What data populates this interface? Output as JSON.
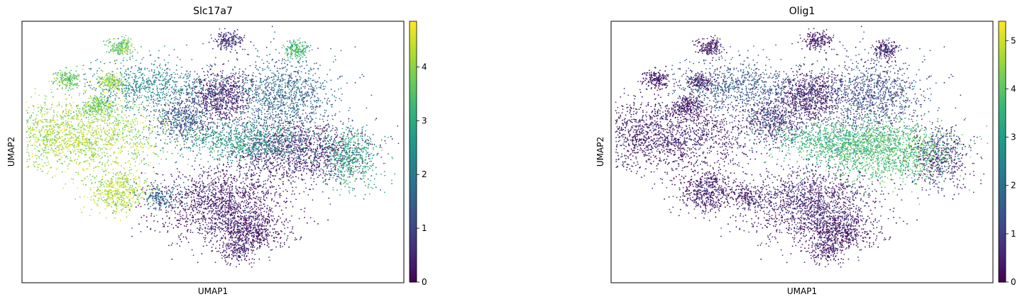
{
  "chart_data": [
    {
      "type": "scatter",
      "title": "Slc17a7",
      "xlabel": "UMAP1",
      "ylabel": "UMAP2",
      "colormap": "viridis",
      "colorbar": {
        "min": 0,
        "max": 4.85,
        "ticks": [
          0,
          1,
          2,
          3,
          4
        ]
      },
      "grid": false,
      "clusters": [
        {
          "x": -9.0,
          "y": 2.0,
          "spread": [
            3.0,
            1.2
          ],
          "value": 4.1,
          "weight": 10
        },
        {
          "x": -6.2,
          "y": -1.6,
          "spread": [
            0.9,
            0.7
          ],
          "value": 4.2,
          "weight": 3
        },
        {
          "x": -7.5,
          "y": 3.8,
          "spread": [
            0.5,
            0.3
          ],
          "value": 3.5,
          "weight": 1
        },
        {
          "x": -6.0,
          "y": 7.5,
          "spread": [
            0.4,
            0.3
          ],
          "value": 3.6,
          "weight": 1
        },
        {
          "x": -9.5,
          "y": 5.5,
          "spread": [
            0.4,
            0.3
          ],
          "value": 3.6,
          "weight": 1
        },
        {
          "x": -6.7,
          "y": 5.3,
          "spread": [
            0.5,
            0.3
          ],
          "value": 4.0,
          "weight": 1
        },
        {
          "x": -4.0,
          "y": 5.0,
          "spread": [
            2.0,
            0.8
          ],
          "value": 2.2,
          "weight": 4
        },
        {
          "x": -2.0,
          "y": 3.0,
          "spread": [
            1.0,
            0.8
          ],
          "value": 1.2,
          "weight": 3
        },
        {
          "x": 0.5,
          "y": 4.4,
          "spread": [
            1.0,
            0.8
          ],
          "value": 0.4,
          "weight": 4
        },
        {
          "x": 4.5,
          "y": 4.5,
          "spread": [
            1.8,
            1.2
          ],
          "value": 1.6,
          "weight": 6
        },
        {
          "x": 5.5,
          "y": 1.0,
          "spread": [
            2.2,
            1.0
          ],
          "value": 0.5,
          "weight": 8
        },
        {
          "x": 2.0,
          "y": 1.5,
          "spread": [
            2.0,
            0.6
          ],
          "value": 2.6,
          "weight": 4
        },
        {
          "x": 0.5,
          "y": -2.5,
          "spread": [
            2.2,
            1.1
          ],
          "value": 0.3,
          "weight": 8
        },
        {
          "x": 2.5,
          "y": -4.3,
          "spread": [
            1.2,
            0.6
          ],
          "value": 0.3,
          "weight": 3
        },
        {
          "x": 1.5,
          "y": -5.5,
          "spread": [
            0.6,
            0.4
          ],
          "value": 0.3,
          "weight": 1
        },
        {
          "x": 9.0,
          "y": 0.5,
          "spread": [
            1.0,
            1.0
          ],
          "value": 2.8,
          "weight": 3
        },
        {
          "x": 1.0,
          "y": 8.0,
          "spread": [
            0.5,
            0.3
          ],
          "value": 0.6,
          "weight": 1
        },
        {
          "x": 5.5,
          "y": 7.4,
          "spread": [
            0.4,
            0.3
          ],
          "value": 3.2,
          "weight": 1
        },
        {
          "x": -3.5,
          "y": -2.0,
          "spread": [
            0.7,
            0.4
          ],
          "value": 1.6,
          "weight": 1
        }
      ]
    },
    {
      "type": "scatter",
      "title": "Olig1",
      "xlabel": "UMAP1",
      "ylabel": "UMAP2",
      "colormap": "viridis",
      "colorbar": {
        "min": 0,
        "max": 5.4,
        "ticks": [
          0,
          1,
          2,
          3,
          4,
          5
        ]
      },
      "grid": false,
      "clusters": [
        {
          "x": -9.0,
          "y": 2.0,
          "spread": [
            3.0,
            1.2
          ],
          "value": 0.4,
          "weight": 10
        },
        {
          "x": -6.2,
          "y": -1.6,
          "spread": [
            0.9,
            0.7
          ],
          "value": 0.3,
          "weight": 3
        },
        {
          "x": -7.5,
          "y": 3.8,
          "spread": [
            0.5,
            0.3
          ],
          "value": 0.3,
          "weight": 1
        },
        {
          "x": -6.0,
          "y": 7.5,
          "spread": [
            0.4,
            0.3
          ],
          "value": 0.3,
          "weight": 1
        },
        {
          "x": -9.5,
          "y": 5.5,
          "spread": [
            0.4,
            0.3
          ],
          "value": 0.3,
          "weight": 1
        },
        {
          "x": -6.7,
          "y": 5.3,
          "spread": [
            0.5,
            0.3
          ],
          "value": 0.3,
          "weight": 1
        },
        {
          "x": -4.0,
          "y": 5.0,
          "spread": [
            2.0,
            0.8
          ],
          "value": 1.5,
          "weight": 4
        },
        {
          "x": -2.0,
          "y": 3.0,
          "spread": [
            1.0,
            0.8
          ],
          "value": 0.8,
          "weight": 3
        },
        {
          "x": 0.5,
          "y": 4.4,
          "spread": [
            1.0,
            0.8
          ],
          "value": 0.4,
          "weight": 4
        },
        {
          "x": 4.5,
          "y": 4.5,
          "spread": [
            1.8,
            1.2
          ],
          "value": 1.2,
          "weight": 6
        },
        {
          "x": 5.5,
          "y": 1.0,
          "spread": [
            2.2,
            1.0
          ],
          "value": 3.7,
          "weight": 8
        },
        {
          "x": 2.0,
          "y": 1.5,
          "spread": [
            2.0,
            0.6
          ],
          "value": 3.3,
          "weight": 4
        },
        {
          "x": 0.5,
          "y": -2.5,
          "spread": [
            2.2,
            1.1
          ],
          "value": 0.5,
          "weight": 8
        },
        {
          "x": 2.5,
          "y": -4.3,
          "spread": [
            1.2,
            0.6
          ],
          "value": 0.3,
          "weight": 3
        },
        {
          "x": 1.5,
          "y": -5.5,
          "spread": [
            0.6,
            0.4
          ],
          "value": 0.3,
          "weight": 1
        },
        {
          "x": 9.0,
          "y": 0.5,
          "spread": [
            1.0,
            1.0
          ],
          "value": 0.6,
          "weight": 3
        },
        {
          "x": 1.0,
          "y": 8.0,
          "spread": [
            0.5,
            0.3
          ],
          "value": 0.3,
          "weight": 1
        },
        {
          "x": 5.5,
          "y": 7.4,
          "spread": [
            0.4,
            0.3
          ],
          "value": 0.5,
          "weight": 1
        },
        {
          "x": -3.5,
          "y": -2.0,
          "spread": [
            0.7,
            0.4
          ],
          "value": 0.4,
          "weight": 1
        }
      ]
    }
  ]
}
